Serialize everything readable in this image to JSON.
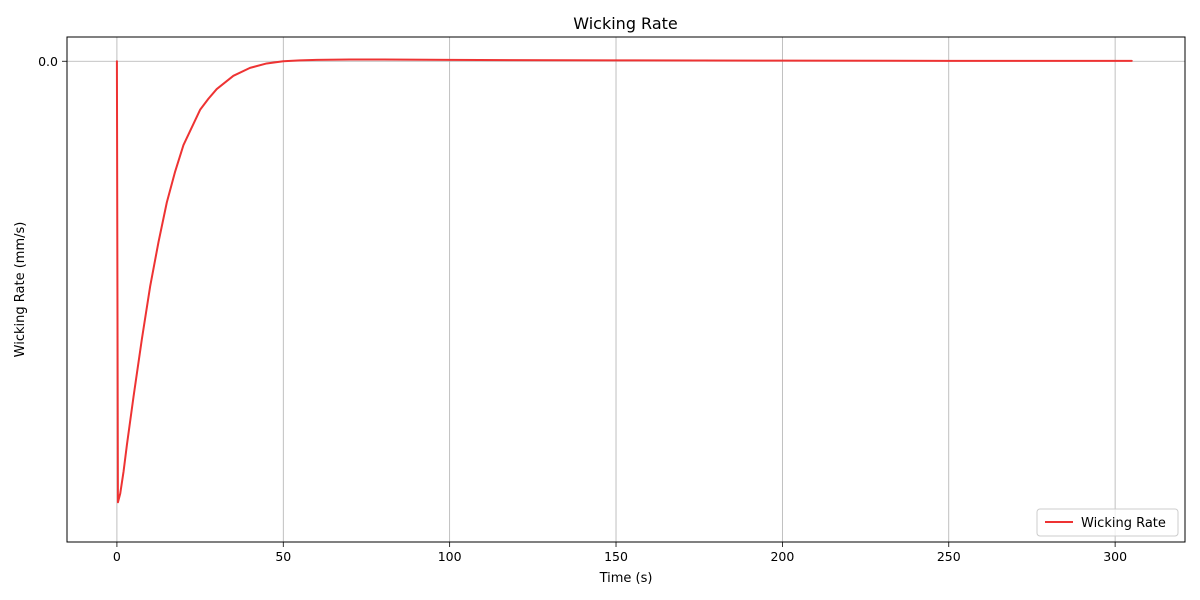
{
  "chart_data": {
    "type": "line",
    "title": "Wicking Rate",
    "xlabel": "Time (s)",
    "ylabel": "Wicking Rate (mm/s)",
    "xlim": [
      -15,
      321
    ],
    "ylim": [
      -1.09,
      0.055
    ],
    "x_ticks": [
      0,
      50,
      100,
      150,
      200,
      250,
      300
    ],
    "x_tick_labels": [
      "0",
      "50",
      "100",
      "150",
      "200",
      "250",
      "300"
    ],
    "y_ticks": [
      0.0
    ],
    "y_tick_labels": [
      "0.0"
    ],
    "grid": true,
    "legend_position": "lower-right",
    "series": [
      {
        "name": "Wicking Rate",
        "color": "#ee3333",
        "x": [
          0,
          0.3,
          1,
          2,
          3,
          5,
          7.5,
          10,
          12.5,
          15,
          17.5,
          20,
          22.5,
          25,
          27.5,
          30,
          35,
          40,
          45,
          50,
          55,
          60,
          70,
          80,
          100,
          150,
          200,
          250,
          300,
          305
        ],
        "y": [
          0.0,
          -1.0,
          -0.98,
          -0.93,
          -0.87,
          -0.76,
          -0.63,
          -0.51,
          -0.41,
          -0.32,
          -0.25,
          -0.19,
          -0.15,
          -0.11,
          -0.085,
          -0.063,
          -0.033,
          -0.015,
          -0.005,
          0.0,
          0.002,
          0.003,
          0.004,
          0.004,
          0.003,
          0.002,
          0.0015,
          0.001,
          0.0008,
          0.0008
        ]
      }
    ]
  }
}
